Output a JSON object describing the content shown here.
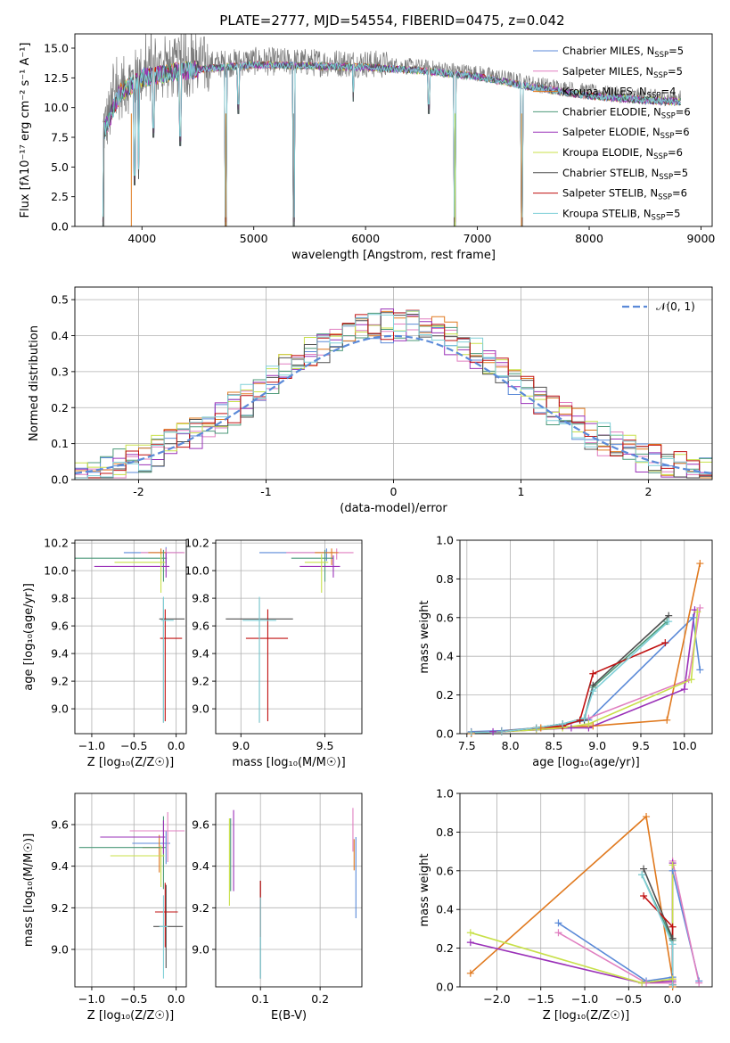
{
  "figure_title": "PLATE=2777, MJD=54554, FIBERID=0475, z=0.042",
  "models": [
    {
      "name": "Chabrier MILES",
      "nssp": "5",
      "color": "#5b8ad8"
    },
    {
      "name": "Salpeter MILES",
      "nssp": "5",
      "color": "#e07fc0"
    },
    {
      "name": "Kroupa MILES",
      "nssp": "4",
      "color": "#e0791e"
    },
    {
      "name": "Chabrier ELODIE",
      "nssp": "6",
      "color": "#4c9a7a"
    },
    {
      "name": "Salpeter ELODIE",
      "nssp": "6",
      "color": "#9a30b8"
    },
    {
      "name": "Kroupa ELODIE",
      "nssp": "6",
      "color": "#c8e04a"
    },
    {
      "name": "Chabrier STELIB",
      "nssp": "5",
      "color": "#505050"
    },
    {
      "name": "Salpeter STELIB",
      "nssp": "6",
      "color": "#c01010"
    },
    {
      "name": "Kroupa STELIB",
      "nssp": "5",
      "color": "#80d0d8"
    }
  ],
  "chart_data": [
    {
      "id": "spectrum",
      "type": "line",
      "title": "PLATE=2777, MJD=54554, FIBERID=0475, z=0.042",
      "xlabel": "wavelength [Angstrom, rest frame]",
      "ylabel": "Flux [fλ10⁻¹⁷ erg cm⁻² s⁻¹ A⁻¹]",
      "xlim": [
        3400,
        9100
      ],
      "ylim": [
        0,
        16.2
      ],
      "xticks": [
        4000,
        5000,
        6000,
        7000,
        8000,
        9000
      ],
      "yticks": [
        0.0,
        2.5,
        5.0,
        7.5,
        10.0,
        12.5,
        15.0
      ],
      "legend": "right",
      "data_envelope": {
        "x": [
          3650,
          3800,
          4000,
          4300,
          4600,
          5000,
          5500,
          6000,
          6500,
          7000,
          7500,
          8000,
          8500,
          8800
        ],
        "y": [
          8.0,
          11.5,
          12.8,
          13.3,
          13.6,
          13.9,
          13.8,
          13.7,
          13.4,
          12.9,
          12.0,
          11.3,
          10.9,
          10.8
        ]
      },
      "dips": [
        {
          "x": 3650,
          "y": 0.0
        },
        {
          "x": 3935,
          "y": 3.5
        },
        {
          "x": 3970,
          "y": 4.0
        },
        {
          "x": 4101,
          "y": 7.5
        },
        {
          "x": 4340,
          "y": 6.8
        },
        {
          "x": 4750,
          "y": 0.0
        },
        {
          "x": 4861,
          "y": 9.5
        },
        {
          "x": 5355,
          "y": 0.0
        },
        {
          "x": 5890,
          "y": 10.5
        },
        {
          "x": 6563,
          "y": 9.5
        },
        {
          "x": 6800,
          "y": 0.0
        },
        {
          "x": 7400,
          "y": 0.0
        }
      ]
    },
    {
      "id": "residuals",
      "type": "histogram",
      "xlabel": "(data-model)/error",
      "ylabel": "Normed distribution",
      "xlim": [
        -2.5,
        2.5
      ],
      "ylim": [
        0,
        0.535
      ],
      "xticks": [
        -2,
        -1,
        0,
        1,
        2
      ],
      "yticks": [
        0.0,
        0.1,
        0.2,
        0.3,
        0.4,
        0.5
      ],
      "reference_label": "𝒩(0, 1)",
      "legend": "upper right",
      "bin_width": 0.1
    },
    {
      "id": "age-vs-Z",
      "type": "errorbar",
      "xlabel": "Z [log₁₀(Z/Z☉)]",
      "ylabel": "age  [log₁₀(age/yr)]",
      "xlim": [
        -1.2,
        0.12
      ],
      "ylim": [
        8.82,
        10.22
      ],
      "xticks": [
        -1.0,
        -0.5,
        0.0
      ],
      "yticks": [
        9.0,
        9.2,
        9.4,
        9.6,
        9.8,
        10.0,
        10.2
      ],
      "points": [
        {
          "x": -0.12,
          "y": 10.13,
          "xerr": [
            0.5,
            0.2
          ],
          "yerr": [
            0.08,
            0.04
          ],
          "model": 0
        },
        {
          "x": -0.12,
          "y": 10.13,
          "xerr": [
            0.3,
            0.22
          ],
          "yerr": [
            0.05,
            0.03
          ],
          "model": 1
        },
        {
          "x": -0.18,
          "y": 10.13,
          "xerr": [
            0.15,
            0.06
          ],
          "yerr": [
            0.09,
            0.03
          ],
          "model": 2
        },
        {
          "x": -0.15,
          "y": 10.09,
          "xerr": [
            1.05,
            0.04
          ],
          "yerr": [
            0.17,
            0.06
          ],
          "model": 3
        },
        {
          "x": -0.12,
          "y": 10.03,
          "xerr": [
            0.85,
            0.04
          ],
          "yerr": [
            0.08,
            0.1
          ],
          "model": 4
        },
        {
          "x": -0.18,
          "y": 10.06,
          "xerr": [
            0.55,
            0.05
          ],
          "yerr": [
            0.22,
            0.06
          ],
          "model": 5
        },
        {
          "x": -0.15,
          "y": 9.65,
          "xerr": [
            0.05,
            0.25
          ],
          "yerr": [
            0.75,
            0.15
          ],
          "model": 6
        },
        {
          "x": -0.13,
          "y": 9.51,
          "xerr": [
            0.06,
            0.2
          ],
          "yerr": [
            0.6,
            0.21
          ],
          "model": 7
        },
        {
          "x": -0.15,
          "y": 9.64,
          "xerr": [
            0.03,
            0.12
          ],
          "yerr": [
            0.74,
            0.17
          ],
          "model": 8
        }
      ]
    },
    {
      "id": "age-vs-mass",
      "type": "errorbar",
      "xlabel": "mass [log₁₀(M/M☉)]",
      "ylabel": "",
      "xlim": [
        8.85,
        9.72
      ],
      "ylim": [
        8.82,
        10.22
      ],
      "xticks": [
        9.0,
        9.5
      ],
      "yticks": [
        9.0,
        9.2,
        9.4,
        9.6,
        9.8,
        10.0,
        10.2
      ],
      "points": [
        {
          "x": 9.51,
          "y": 10.13,
          "xerr": [
            0.4,
            0.05
          ],
          "yerr": [
            0.06,
            0.03
          ],
          "model": 0
        },
        {
          "x": 9.57,
          "y": 10.13,
          "xerr": [
            0.3,
            0.1
          ],
          "yerr": [
            0.05,
            0.03
          ],
          "model": 1
        },
        {
          "x": 9.54,
          "y": 10.13,
          "xerr": [
            0.1,
            0.04
          ],
          "yerr": [
            0.09,
            0.03
          ],
          "model": 2
        },
        {
          "x": 9.5,
          "y": 10.09,
          "xerr": [
            0.2,
            0.05
          ],
          "yerr": [
            0.17,
            0.06
          ],
          "model": 3
        },
        {
          "x": 9.55,
          "y": 10.03,
          "xerr": [
            0.2,
            0.04
          ],
          "yerr": [
            0.08,
            0.08
          ],
          "model": 4
        },
        {
          "x": 9.48,
          "y": 10.06,
          "xerr": [
            0.1,
            0.04
          ],
          "yerr": [
            0.22,
            0.06
          ],
          "model": 5
        },
        {
          "x": 9.11,
          "y": 9.65,
          "xerr": [
            0.2,
            0.2
          ],
          "yerr": [
            0.75,
            0.15
          ],
          "model": 6
        },
        {
          "x": 9.16,
          "y": 9.51,
          "xerr": [
            0.13,
            0.12
          ],
          "yerr": [
            0.6,
            0.21
          ],
          "model": 7
        },
        {
          "x": 9.11,
          "y": 9.64,
          "xerr": [
            0.1,
            0.1
          ],
          "yerr": [
            0.74,
            0.17
          ],
          "model": 8
        }
      ]
    },
    {
      "id": "weight-vs-age",
      "type": "line",
      "xlabel": "age  [log₁₀(age/yr)]",
      "ylabel": "mass weight",
      "xlim": [
        7.42,
        10.32
      ],
      "ylim": [
        0,
        1.0
      ],
      "xticks": [
        7.5,
        8.0,
        8.5,
        9.0,
        9.5,
        10.0
      ],
      "yticks": [
        0.0,
        0.2,
        0.4,
        0.6,
        0.8,
        1.0
      ],
      "series": [
        {
          "x": [
            7.55,
            7.9,
            8.3,
            8.6,
            8.9,
            10.1,
            10.18
          ],
          "y": [
            0.01,
            0.015,
            0.03,
            0.05,
            0.07,
            0.6,
            0.33
          ],
          "model": 0
        },
        {
          "x": [
            7.55,
            7.9,
            8.3,
            8.6,
            8.9,
            10.05,
            10.18
          ],
          "y": [
            0.005,
            0.01,
            0.02,
            0.04,
            0.08,
            0.28,
            0.65
          ],
          "model": 1
        },
        {
          "x": [
            7.55,
            8.35,
            8.95,
            9.8,
            10.18
          ],
          "y": [
            0.0,
            0.03,
            0.04,
            0.07,
            0.88
          ],
          "model": 2
        },
        {
          "x": [
            7.55,
            7.9,
            8.3,
            8.6,
            8.85,
            8.95,
            9.8
          ],
          "y": [
            0.005,
            0.01,
            0.03,
            0.05,
            0.08,
            0.24,
            0.58
          ],
          "model": 3
        },
        {
          "x": [
            7.55,
            7.8,
            8.3,
            8.7,
            8.9,
            10.0,
            10.12
          ],
          "y": [
            0.005,
            0.01,
            0.02,
            0.03,
            0.03,
            0.23,
            0.64
          ],
          "model": 4
        },
        {
          "x": [
            7.55,
            7.9,
            8.3,
            8.6,
            8.9,
            10.08,
            10.15
          ],
          "y": [
            0.005,
            0.01,
            0.02,
            0.03,
            0.05,
            0.28,
            0.63
          ],
          "model": 5
        },
        {
          "x": [
            7.55,
            7.9,
            8.3,
            8.6,
            8.85,
            8.95,
            9.82
          ],
          "y": [
            0.005,
            0.01,
            0.03,
            0.05,
            0.07,
            0.25,
            0.61
          ],
          "model": 6
        },
        {
          "x": [
            7.55,
            7.9,
            8.3,
            8.6,
            8.8,
            8.95,
            9.78
          ],
          "y": [
            0.005,
            0.01,
            0.03,
            0.04,
            0.07,
            0.31,
            0.47
          ],
          "model": 7
        },
        {
          "x": [
            7.55,
            7.9,
            8.3,
            8.6,
            8.85,
            8.95,
            9.82
          ],
          "y": [
            0.005,
            0.01,
            0.03,
            0.05,
            0.08,
            0.22,
            0.58
          ],
          "model": 8
        }
      ]
    },
    {
      "id": "mass-vs-Z",
      "type": "errorbar",
      "xlabel": "Z [log₁₀(Z/Z☉)]",
      "ylabel": "mass [log₁₀(M/M☉)]",
      "xlim": [
        -1.2,
        0.12
      ],
      "ylim": [
        8.82,
        9.75
      ],
      "xticks": [
        -1.0,
        -0.5,
        0.0
      ],
      "yticks": [
        9.0,
        9.2,
        9.4,
        9.6
      ],
      "points": [
        {
          "x": -0.12,
          "y": 9.51,
          "xerr": [
            0.4,
            0.05
          ],
          "yerr": [
            0.1,
            0.06
          ],
          "model": 0
        },
        {
          "x": -0.1,
          "y": 9.57,
          "xerr": [
            0.45,
            0.2
          ],
          "yerr": [
            0.15,
            0.09
          ],
          "model": 1
        },
        {
          "x": -0.2,
          "y": 9.49,
          "xerr": [
            0.2,
            0.05
          ],
          "yerr": [
            0.12,
            0.06
          ],
          "model": 2
        },
        {
          "x": -0.15,
          "y": 9.49,
          "xerr": [
            1.0,
            0.03
          ],
          "yerr": [
            0.2,
            0.15
          ],
          "model": 3
        },
        {
          "x": -0.15,
          "y": 9.54,
          "xerr": [
            0.75,
            0.02
          ],
          "yerr": [
            0.08,
            0.08
          ],
          "model": 4
        },
        {
          "x": -0.18,
          "y": 9.45,
          "xerr": [
            0.6,
            0.04
          ],
          "yerr": [
            0.15,
            0.05
          ],
          "model": 5
        },
        {
          "x": -0.12,
          "y": 9.11,
          "xerr": [
            0.15,
            0.2
          ],
          "yerr": [
            0.2,
            0.2
          ],
          "model": 6
        },
        {
          "x": -0.13,
          "y": 9.18,
          "xerr": [
            0.12,
            0.15
          ],
          "yerr": [
            0.17,
            0.14
          ],
          "model": 7
        },
        {
          "x": -0.15,
          "y": 9.11,
          "xerr": [
            0.05,
            0.05
          ],
          "yerr": [
            0.25,
            0.15
          ],
          "model": 8
        }
      ]
    },
    {
      "id": "mass-vs-EBV",
      "type": "errorbar",
      "xlabel": "E(B-V)",
      "ylabel": "",
      "xlim": [
        0.025,
        0.27
      ],
      "ylim": [
        8.82,
        9.75
      ],
      "xticks": [
        0.1,
        0.2
      ],
      "yticks": [
        9.0,
        9.2,
        9.4,
        9.6
      ],
      "points": [
        {
          "x": 0.26,
          "y": 9.51,
          "xerr": [
            0,
            0
          ],
          "yerr": [
            0.36,
            0.03
          ],
          "model": 0
        },
        {
          "x": 0.255,
          "y": 9.57,
          "xerr": [
            0,
            0
          ],
          "yerr": [
            0.1,
            0.11
          ],
          "model": 1
        },
        {
          "x": 0.257,
          "y": 9.48,
          "xerr": [
            0,
            0
          ],
          "yerr": [
            0.1,
            0.05
          ],
          "model": 2
        },
        {
          "x": 0.05,
          "y": 9.48,
          "xerr": [
            0,
            0
          ],
          "yerr": [
            0.2,
            0.15
          ],
          "model": 3
        },
        {
          "x": 0.055,
          "y": 9.53,
          "xerr": [
            0,
            0
          ],
          "yerr": [
            0.25,
            0.14
          ],
          "model": 4
        },
        {
          "x": 0.048,
          "y": 9.43,
          "xerr": [
            0,
            0
          ],
          "yerr": [
            0.22,
            0.2
          ],
          "model": 5
        },
        {
          "x": 0.1,
          "y": 9.1,
          "xerr": [
            0,
            0
          ],
          "yerr": [
            0.24,
            0.23
          ],
          "model": 6
        },
        {
          "x": 0.1,
          "y": 9.26,
          "xerr": [
            0,
            0
          ],
          "yerr": [
            0.2,
            0.07
          ],
          "model": 7
        },
        {
          "x": 0.1,
          "y": 9.1,
          "xerr": [
            0,
            0
          ],
          "yerr": [
            0.24,
            0.15
          ],
          "model": 8
        }
      ]
    },
    {
      "id": "weight-vs-Z",
      "type": "line",
      "xlabel": "Z [log₁₀(Z/Z☉)]",
      "ylabel": "mass weight",
      "xlim": [
        -2.42,
        0.45
      ],
      "ylim": [
        0,
        1.0
      ],
      "xticks": [
        -2.0,
        -1.5,
        -1.0,
        -0.5,
        0.0
      ],
      "yticks": [
        0.0,
        0.2,
        0.4,
        0.6,
        0.8,
        1.0
      ],
      "series": [
        {
          "x": [
            -1.3,
            -0.3,
            0.0,
            0.0,
            0.3
          ],
          "y": [
            0.33,
            0.03,
            0.05,
            0.6,
            0.03
          ],
          "model": 0
        },
        {
          "x": [
            -1.3,
            -0.3,
            0.0,
            0.0,
            0.3
          ],
          "y": [
            0.28,
            0.02,
            0.02,
            0.65,
            0.02
          ],
          "model": 1
        },
        {
          "x": [
            -2.3,
            -0.3,
            0.0,
            0.0
          ],
          "y": [
            0.07,
            0.88,
            0.04,
            0.0
          ],
          "model": 2
        },
        {
          "x": [
            -0.35,
            0.0,
            0.0
          ],
          "y": [
            0.58,
            0.24,
            0.01
          ],
          "model": 3
        },
        {
          "x": [
            -2.3,
            -0.35,
            0.0,
            0.0
          ],
          "y": [
            0.23,
            0.02,
            0.03,
            0.64
          ],
          "model": 4
        },
        {
          "x": [
            -2.3,
            -0.35,
            0.0,
            0.0
          ],
          "y": [
            0.28,
            0.02,
            0.04,
            0.63
          ],
          "model": 5
        },
        {
          "x": [
            -0.33,
            0.0,
            0.0
          ],
          "y": [
            0.61,
            0.25,
            0.01
          ],
          "model": 6
        },
        {
          "x": [
            -0.33,
            0.0,
            0.0
          ],
          "y": [
            0.47,
            0.31,
            0.01
          ],
          "model": 7
        },
        {
          "x": [
            -0.35,
            0.0,
            0.0
          ],
          "y": [
            0.58,
            0.22,
            0.01
          ],
          "model": 8
        }
      ]
    }
  ]
}
